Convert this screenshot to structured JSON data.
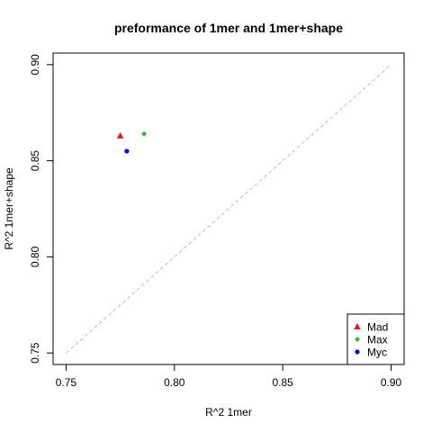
{
  "chart_data": {
    "type": "scatter",
    "title": "preformance of 1mer and 1mer+shape",
    "xlabel": "R^2 1mer",
    "ylabel": "R^2 1mer+shape",
    "xlim": [
      0.744,
      0.906
    ],
    "ylim": [
      0.744,
      0.906
    ],
    "xticks": [
      "0.75",
      "0.80",
      "0.85",
      "0.90"
    ],
    "yticks": [
      "0.75",
      "0.80",
      "0.85",
      "0.90"
    ],
    "reference_line": {
      "x": [
        0.75,
        0.9
      ],
      "y": [
        0.75,
        0.9
      ],
      "style": "dashed",
      "color": "#bbbbbb"
    },
    "grid": false,
    "legend_position": "bottom-right",
    "series": [
      {
        "name": "Mad",
        "x": [
          0.775
        ],
        "y": [
          0.863
        ],
        "color": "#e31a1c",
        "marker": "triangle"
      },
      {
        "name": "Max",
        "x": [
          0.786
        ],
        "y": [
          0.864
        ],
        "color": "#33b533",
        "marker": "diamond"
      },
      {
        "name": "Myc",
        "x": [
          0.778
        ],
        "y": [
          0.855
        ],
        "color": "#0000ee",
        "marker": "circle"
      }
    ]
  }
}
